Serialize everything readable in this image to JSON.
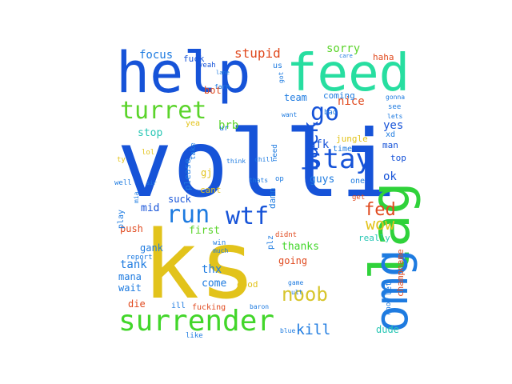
{
  "words": [
    {
      "id": "volli",
      "text": "volli",
      "color": "#1653d8",
      "rot": 0
    },
    {
      "id": "ks",
      "text": "ks",
      "color": "#e2c31b",
      "rot": 0
    },
    {
      "id": "help",
      "text": "help",
      "color": "#1653d8",
      "rot": 0
    },
    {
      "id": "feed",
      "text": "feed",
      "color": "#27dea0",
      "rot": 0
    },
    {
      "id": "lag",
      "text": "lag",
      "color": "#2fd23a",
      "rot": 90
    },
    {
      "id": "omg",
      "text": "omg",
      "color": "#1e7be0",
      "rot": 90
    },
    {
      "id": "surrender",
      "text": "surrender",
      "color": "#42d62a",
      "rot": 0
    },
    {
      "id": "turret",
      "text": "turret",
      "color": "#5bd42b",
      "rot": 0
    },
    {
      "id": "run",
      "text": "run",
      "color": "#1e7be0",
      "rot": 0
    },
    {
      "id": "wtf",
      "text": "wtf",
      "color": "#1653d8",
      "rot": 0
    },
    {
      "id": "stay",
      "text": "stay",
      "color": "#1653d8",
      "rot": 0
    },
    {
      "id": "back",
      "text": "back",
      "color": "#1653d8",
      "rot": 90
    },
    {
      "id": "go",
      "text": "go",
      "color": "#1653d8",
      "rot": 0
    },
    {
      "id": "noob",
      "text": "noob",
      "color": "#d7c52b",
      "rot": 0
    },
    {
      "id": "fed",
      "text": "fed",
      "color": "#e04a1f",
      "rot": 0
    },
    {
      "id": "wow",
      "text": "wow",
      "color": "#e2c31b",
      "rot": 0
    },
    {
      "id": "kill",
      "text": "kill",
      "color": "#1e7be0",
      "rot": 0
    },
    {
      "id": "stupid",
      "text": "stupid",
      "color": "#e04a1f",
      "rot": 0
    },
    {
      "id": "focus",
      "text": "focus",
      "color": "#1e7be0",
      "rot": 0
    },
    {
      "id": "sorry",
      "text": "sorry",
      "color": "#5bd42b",
      "rot": 0
    },
    {
      "id": "nice",
      "text": "nice",
      "color": "#e04a1f",
      "rot": 0
    },
    {
      "id": "yes",
      "text": "yes",
      "color": "#1653d8",
      "rot": 0
    },
    {
      "id": "ok",
      "text": "ok",
      "color": "#1653d8",
      "rot": 0
    },
    {
      "id": "afk",
      "text": "afk",
      "color": "#1653d8",
      "rot": 0
    },
    {
      "id": "brb",
      "text": "brb",
      "color": "#5bd42b",
      "rot": 0
    },
    {
      "id": "stop",
      "text": "stop",
      "color": "#27c6b4",
      "rot": 0
    },
    {
      "id": "team",
      "text": "team",
      "color": "#1e7be0",
      "rot": 0
    },
    {
      "id": "guys",
      "text": "guys",
      "color": "#1e7be0",
      "rot": 0
    },
    {
      "id": "thanks",
      "text": "thanks",
      "color": "#42d62a",
      "rot": 0
    },
    {
      "id": "going",
      "text": "going",
      "color": "#e04a1f",
      "rot": 0
    },
    {
      "id": "tank",
      "text": "tank",
      "color": "#1e7be0",
      "rot": 0
    },
    {
      "id": "push",
      "text": "push",
      "color": "#e04a1f",
      "rot": 0
    },
    {
      "id": "first",
      "text": "first",
      "color": "#5bd42b",
      "rot": 0
    },
    {
      "id": "mid",
      "text": "mid",
      "color": "#1653d8",
      "rot": 0
    },
    {
      "id": "suck",
      "text": "suck",
      "color": "#1653d8",
      "rot": 0
    },
    {
      "id": "gank",
      "text": "gank",
      "color": "#1e7be0",
      "rot": 0
    },
    {
      "id": "thx",
      "text": "thx",
      "color": "#1e7be0",
      "rot": 0
    },
    {
      "id": "mana",
      "text": "mana",
      "color": "#1e7be0",
      "rot": 0
    },
    {
      "id": "wait",
      "text": "wait",
      "color": "#1e7be0",
      "rot": 0
    },
    {
      "id": "come",
      "text": "come",
      "color": "#1e7be0",
      "rot": 0
    },
    {
      "id": "die",
      "text": "die",
      "color": "#e04a1f",
      "rot": 0
    },
    {
      "id": "dude",
      "text": "dude",
      "color": "#27c6b4",
      "rot": 0
    },
    {
      "id": "champname",
      "text": "champname",
      "color": "#e04a1f",
      "rot": 90
    },
    {
      "id": "really",
      "text": "really",
      "color": "#27c6b4",
      "rot": 0
    },
    {
      "id": "good",
      "text": "good",
      "color": "#e2c31b",
      "rot": 0
    },
    {
      "id": "gj",
      "text": "gj",
      "color": "#e2c31b",
      "rot": 0
    },
    {
      "id": "cant",
      "text": "cant",
      "color": "#e2c31b",
      "rot": 0
    },
    {
      "id": "please",
      "text": "please",
      "color": "#1e7be0",
      "rot": 90
    },
    {
      "id": "damn",
      "text": "damn",
      "color": "#1e7be0",
      "rot": 90
    },
    {
      "id": "bot",
      "text": "bot",
      "color": "#e04a1f",
      "rot": 0
    },
    {
      "id": "jungle",
      "text": "jungle",
      "color": "#e2c31b",
      "rot": 0
    },
    {
      "id": "man",
      "text": "man",
      "color": "#1653d8",
      "rot": 0
    },
    {
      "id": "top",
      "text": "top",
      "color": "#1653d8",
      "rot": 0
    },
    {
      "id": "haha",
      "text": "haha",
      "color": "#e04a1f",
      "rot": 0
    },
    {
      "id": "coming",
      "text": "coming",
      "color": "#1e7be0",
      "rot": 0
    },
    {
      "id": "fuck",
      "text": "fuck",
      "color": "#1653d8",
      "rot": 0
    },
    {
      "id": "yeah",
      "text": "yeah",
      "color": "#1653d8",
      "rot": 0
    },
    {
      "id": "us",
      "text": "us",
      "color": "#1e7be0",
      "rot": 0
    },
    {
      "id": "yea",
      "text": "yea",
      "color": "#e2c31b",
      "rot": 0
    },
    {
      "id": "ur",
      "text": "ur",
      "color": "#1e7be0",
      "rot": 0
    },
    {
      "id": "lol",
      "text": "lol",
      "color": "#e2c31b",
      "rot": 0
    },
    {
      "id": "one",
      "text": "one",
      "color": "#1e7be0",
      "rot": 0
    },
    {
      "id": "op",
      "text": "op",
      "color": "#1e7be0",
      "rot": 0
    },
    {
      "id": "need",
      "text": "need",
      "color": "#1e7be0",
      "rot": 90
    },
    {
      "id": "take",
      "text": "take",
      "color": "#1e7be0",
      "rot": 90
    },
    {
      "id": "time",
      "text": "time",
      "color": "#1e7be0",
      "rot": 0
    },
    {
      "id": "xd",
      "text": "xd",
      "color": "#1e7be0",
      "rot": 0
    },
    {
      "id": "bad",
      "text": "bad",
      "color": "#1e7be0",
      "rot": 0
    },
    {
      "id": "want",
      "text": "want",
      "color": "#1e7be0",
      "rot": 0
    },
    {
      "id": "see",
      "text": "see",
      "color": "#1e7be0",
      "rot": 0
    },
    {
      "id": "lets",
      "text": "lets",
      "color": "#1e7be0",
      "rot": 0
    },
    {
      "id": "gonna",
      "text": "gonna",
      "color": "#1e7be0",
      "rot": 0
    },
    {
      "id": "care",
      "text": "care",
      "color": "#1e7be0",
      "rot": 0
    },
    {
      "id": "lane",
      "text": "lane",
      "color": "#1e7be0",
      "rot": 0
    },
    {
      "id": "farm",
      "text": "farm",
      "color": "#1e7be0",
      "rot": 0
    },
    {
      "id": "got",
      "text": "got",
      "color": "#1e7be0",
      "rot": 90
    },
    {
      "id": "well",
      "text": "well",
      "color": "#1e7be0",
      "rot": 0
    },
    {
      "id": "ty",
      "text": "ty",
      "color": "#e2c31b",
      "rot": 0
    },
    {
      "id": "play",
      "text": "play",
      "color": "#1e7be0",
      "rot": 90
    },
    {
      "id": "report",
      "text": "report",
      "color": "#1e7be0",
      "rot": 0
    },
    {
      "id": "win",
      "text": "win",
      "color": "#1e7be0",
      "rot": 0
    },
    {
      "id": "much",
      "text": "much",
      "color": "#1e7be0",
      "rot": 0
    },
    {
      "id": "didnt",
      "text": "didnt",
      "color": "#e04a1f",
      "rot": 0
    },
    {
      "id": "plz",
      "text": "plz",
      "color": "#1e7be0",
      "rot": 90
    },
    {
      "id": "get",
      "text": "get",
      "color": "#e04a1f",
      "rot": 0
    },
    {
      "id": "chill",
      "text": "chill",
      "color": "#1e7be0",
      "rot": 0
    },
    {
      "id": "thats",
      "text": "thats",
      "color": "#1e7be0",
      "rot": 0
    },
    {
      "id": "let",
      "text": "let",
      "color": "#1e7be0",
      "rot": 90
    },
    {
      "id": "know",
      "text": "know",
      "color": "#1e7be0",
      "rot": 90
    },
    {
      "id": "game",
      "text": "game",
      "color": "#1e7be0",
      "rot": 0
    },
    {
      "id": "ill",
      "text": "ill",
      "color": "#1e7be0",
      "rot": 0
    },
    {
      "id": "fucking",
      "text": "fucking",
      "color": "#e04a1f",
      "rot": 0
    },
    {
      "id": "baron",
      "text": "baron",
      "color": "#1e7be0",
      "rot": 0
    },
    {
      "id": "like",
      "text": "like",
      "color": "#1e7be0",
      "rot": 0
    },
    {
      "id": "blue",
      "text": "blue",
      "color": "#1e7be0",
      "rot": 0
    },
    {
      "id": "ult",
      "text": "ult",
      "color": "#1e7be0",
      "rot": 0
    },
    {
      "id": "mia",
      "text": "mia",
      "color": "#1e7be0",
      "rot": 90
    },
    {
      "id": "think",
      "text": "think",
      "color": "#1e7be0",
      "rot": 0
    },
    {
      "id": "sir",
      "text": "sir",
      "color": "#1e7be0",
      "rot": 0
    }
  ]
}
